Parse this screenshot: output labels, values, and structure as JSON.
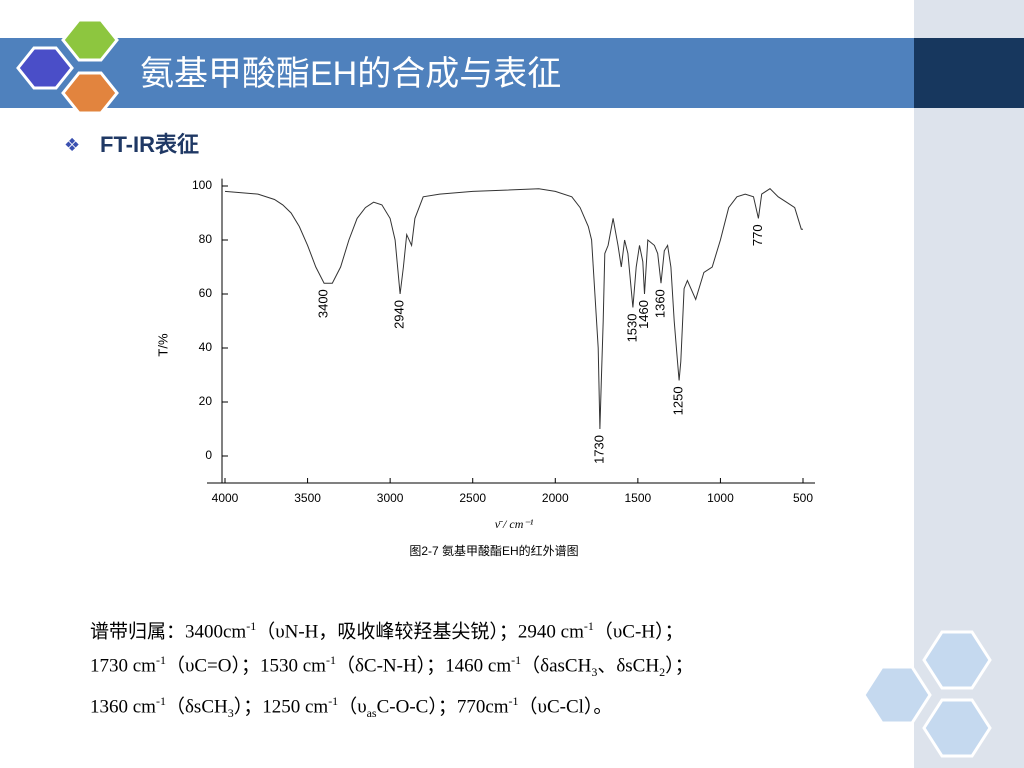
{
  "slide_title": "氨基甲酸酯EH的合成与表征",
  "bullet": "FT-IR表征",
  "chart_data": {
    "type": "line",
    "x_label": "ν̄ / cm⁻¹",
    "y_label": "T/%",
    "caption": "图2-7 氨基甲酸酯EH的红外谱图",
    "x": [
      4000,
      3900,
      3800,
      3700,
      3650,
      3600,
      3550,
      3500,
      3450,
      3400,
      3350,
      3300,
      3250,
      3200,
      3150,
      3100,
      3050,
      3000,
      2970,
      2940,
      2920,
      2900,
      2870,
      2850,
      2800,
      2700,
      2500,
      2300,
      2100,
      2000,
      1900,
      1850,
      1800,
      1780,
      1760,
      1740,
      1730,
      1720,
      1710,
      1700,
      1680,
      1650,
      1620,
      1600,
      1580,
      1560,
      1530,
      1510,
      1490,
      1470,
      1460,
      1440,
      1400,
      1380,
      1360,
      1340,
      1320,
      1300,
      1280,
      1260,
      1250,
      1240,
      1220,
      1200,
      1150,
      1100,
      1050,
      1000,
      950,
      900,
      850,
      800,
      770,
      750,
      700,
      650,
      600,
      550,
      510,
      500
    ],
    "values": [
      98,
      97.5,
      97,
      95,
      93,
      90,
      85,
      78,
      70,
      64,
      64,
      70,
      80,
      88,
      92,
      94,
      93,
      88,
      80,
      60,
      70,
      82,
      78,
      88,
      96,
      97,
      98,
      98.5,
      99,
      98,
      96,
      92,
      85,
      80,
      60,
      40,
      10,
      30,
      50,
      75,
      78,
      88,
      78,
      70,
      80,
      75,
      55,
      70,
      78,
      72,
      60,
      80,
      78,
      75,
      64,
      76,
      78,
      70,
      50,
      35,
      28,
      35,
      62,
      65,
      58,
      68,
      70,
      80,
      92,
      96,
      97,
      96,
      88,
      97,
      99,
      96,
      94,
      92,
      84,
      84
    ],
    "color": "#333333",
    "xlim": [
      4000,
      500
    ],
    "xticks": [
      4000,
      3500,
      3000,
      2500,
      2000,
      1500,
      1000,
      500
    ],
    "ylim": [
      -10,
      102
    ],
    "yticks": [
      0,
      20,
      40,
      60,
      80,
      100
    ],
    "annotations": [
      {
        "text": "3400",
        "x": 3400
      },
      {
        "text": "2940",
        "x": 2940
      },
      {
        "text": "1730",
        "x": 1730
      },
      {
        "text": "1530",
        "x": 1530
      },
      {
        "text": "1460",
        "x": 1460
      },
      {
        "text": "1360",
        "x": 1360
      },
      {
        "text": "1250",
        "x": 1250
      },
      {
        "text": "770",
        "x": 770
      }
    ]
  },
  "assignment": [
    [
      {
        "text": "谱带归属：3400cm"
      },
      {
        "sup": "-1"
      },
      {
        "text": "（υN-H，吸收峰较羟基尖锐）；2940 cm"
      },
      {
        "sup": "-1"
      },
      {
        "text": "（υC-H）；"
      }
    ],
    [
      {
        "text": "1730 cm"
      },
      {
        "sup": "-1"
      },
      {
        "text": "（υC=O）；1530 cm"
      },
      {
        "sup": "-1"
      },
      {
        "text": "（δC-N-H）；1460 cm"
      },
      {
        "sup": "-1"
      },
      {
        "text": "（δasCH"
      },
      {
        "sub": "3"
      },
      {
        "text": "、δsCH"
      },
      {
        "sub": "2"
      },
      {
        "text": "）；"
      }
    ],
    [
      {
        "text": "1360 cm"
      },
      {
        "sup": "-1"
      },
      {
        "text": "（δsCH"
      },
      {
        "sub": "3"
      },
      {
        "text": "）；1250 cm"
      },
      {
        "sup": "-1"
      },
      {
        "text": "（υ"
      },
      {
        "sub": "as"
      },
      {
        "text": "C-O-C）；770cm"
      },
      {
        "sup": "-1"
      },
      {
        "text": "（υC-Cl）。"
      }
    ]
  ]
}
